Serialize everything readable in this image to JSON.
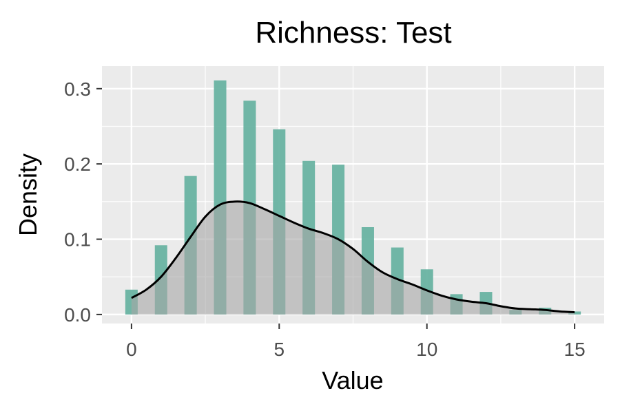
{
  "chart_data": {
    "type": "bar",
    "title": "Richness: Test",
    "xlabel": "Value",
    "ylabel": "Density",
    "xlim": [
      -1,
      16
    ],
    "ylim": [
      -0.012,
      0.33
    ],
    "x_ticks": [
      0,
      5,
      10,
      15
    ],
    "y_ticks": [
      0.0,
      0.1,
      0.2,
      0.3
    ],
    "x_tick_labels": [
      "0",
      "5",
      "10",
      "15"
    ],
    "y_tick_labels": [
      "0.0",
      "0.1",
      "0.2",
      "0.3"
    ],
    "grid": true,
    "bins": {
      "x": [
        0,
        1,
        2,
        3,
        4,
        5,
        6,
        7,
        8,
        9,
        10,
        11,
        12,
        13,
        14,
        15
      ],
      "density": [
        0.033,
        0.092,
        0.184,
        0.311,
        0.284,
        0.246,
        0.204,
        0.199,
        0.116,
        0.089,
        0.06,
        0.027,
        0.03,
        0.006,
        0.009,
        0.004
      ]
    },
    "density_curve": {
      "x": [
        0,
        0.5,
        1,
        1.5,
        2,
        2.5,
        3,
        3.5,
        4,
        4.5,
        5,
        5.5,
        6,
        6.5,
        7,
        7.5,
        8,
        8.5,
        9,
        9.5,
        10,
        10.5,
        11,
        11.5,
        12,
        12.5,
        13,
        13.5,
        14,
        14.5,
        15
      ],
      "y": [
        0.022,
        0.033,
        0.05,
        0.075,
        0.103,
        0.13,
        0.146,
        0.15,
        0.148,
        0.14,
        0.131,
        0.122,
        0.114,
        0.108,
        0.1,
        0.087,
        0.07,
        0.056,
        0.047,
        0.04,
        0.032,
        0.025,
        0.02,
        0.017,
        0.015,
        0.011,
        0.008,
        0.007,
        0.006,
        0.004,
        0.003
      ]
    },
    "colors": {
      "bar": "#69b3a2",
      "density_fill": "#a6a6a6",
      "density_line": "#000000",
      "panel_bg": "#ebebeb",
      "grid": "#ffffff"
    }
  }
}
